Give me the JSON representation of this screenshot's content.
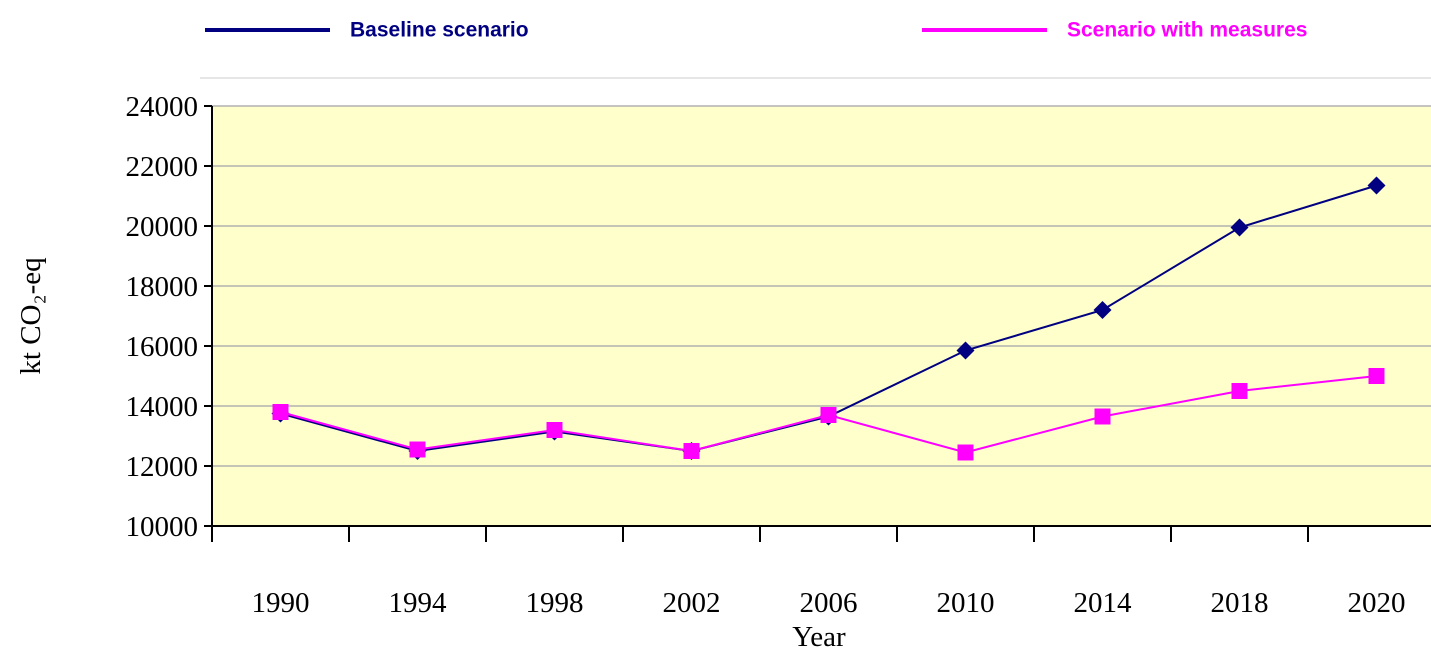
{
  "chart_data": {
    "type": "line",
    "categories": [
      "1990",
      "1994",
      "1998",
      "2002",
      "2006",
      "2010",
      "2014",
      "2018",
      "2020"
    ],
    "series": [
      {
        "name": "Baseline scenario",
        "color": "#000080",
        "marker": "diamond",
        "values": [
          13750,
          12500,
          13150,
          12500,
          13650,
          15850,
          17200,
          19950,
          21350
        ]
      },
      {
        "name": "Scenario with measures",
        "color": "#ff00ff",
        "marker": "square",
        "values": [
          13800,
          12550,
          13200,
          12500,
          13700,
          12450,
          13650,
          14500,
          15000
        ]
      }
    ],
    "x_label": "Year",
    "y_label": "kt CO₂-eq",
    "ylim": [
      10000,
      24000
    ],
    "yticks": [
      10000,
      12000,
      14000,
      16000,
      18000,
      20000,
      22000,
      24000
    ],
    "grid": true,
    "legend": "top"
  }
}
